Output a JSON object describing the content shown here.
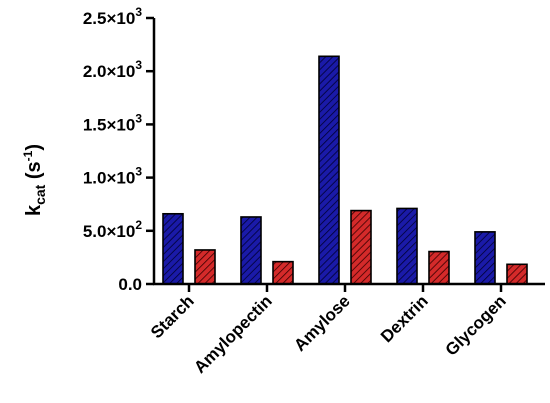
{
  "chart_data": {
    "type": "bar",
    "title": "",
    "xlabel": "",
    "ylabel": {
      "base": "k",
      "sub": "cat",
      "unit_open": " (s",
      "unit_sup": "-1",
      "unit_close": ")"
    },
    "ylim": [
      0,
      2500
    ],
    "yticks": [
      {
        "value": 0,
        "mantissa": "0.0",
        "exp": ""
      },
      {
        "value": 500,
        "mantissa": "5.0×10",
        "exp": "2"
      },
      {
        "value": 1000,
        "mantissa": "1.0×10",
        "exp": "3"
      },
      {
        "value": 1500,
        "mantissa": "1.5×10",
        "exp": "3"
      },
      {
        "value": 2000,
        "mantissa": "2.0×10",
        "exp": "3"
      },
      {
        "value": 2500,
        "mantissa": "2.5×10",
        "exp": "3"
      }
    ],
    "categories": [
      "Starch",
      "Amylopectin",
      "Amylose",
      "Dextrin",
      "Glycogen"
    ],
    "series": [
      {
        "color": "#1a1aa8",
        "values": [
          660,
          630,
          2140,
          710,
          490
        ]
      },
      {
        "color": "#d42a2a",
        "values": [
          320,
          210,
          690,
          305,
          185
        ]
      }
    ],
    "grid": false,
    "legend": "none",
    "pattern": "diagonal-hatch"
  }
}
